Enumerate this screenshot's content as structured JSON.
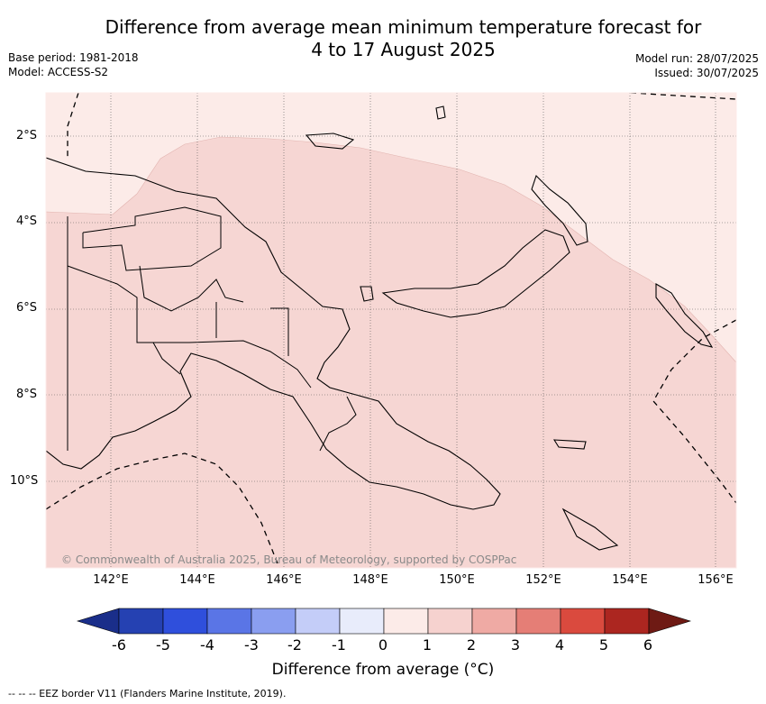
{
  "title_line1": "Difference from average mean minimum temperature forecast for",
  "title_line2": "4 to 17 August 2025",
  "base_period": "Base period: 1981-2018",
  "model": "Model: ACCESS-S2",
  "model_run": "Model run: 28/07/2025",
  "issued": "Issued: 30/07/2025",
  "lat_labels": [
    "2°S",
    "4°S",
    "6°S",
    "8°S",
    "10°S"
  ],
  "lon_labels": [
    "142°E",
    "144°E",
    "146°E",
    "148°E",
    "150°E",
    "152°E",
    "154°E",
    "156°E"
  ],
  "copyright": "© Commonwealth of Australia 2025, Bureau of Meteorology, supported by COSPPac",
  "colorbar": {
    "label": "Difference from average (°C)",
    "ticks": [
      "-6",
      "-5",
      "-4",
      "-3",
      "-2",
      "-1",
      "0",
      "1",
      "2",
      "3",
      "4",
      "5",
      "6"
    ],
    "colors": [
      "#1a2e8a",
      "#2541b2",
      "#2f4fdc",
      "#5a75e6",
      "#8a9ef0",
      "#c4cdf8",
      "#e8ecfb",
      "#fcebe8",
      "#f6d2cf",
      "#efaaa4",
      "#e57e76",
      "#da4a3e",
      "#ac2620",
      "#6e1a14"
    ]
  },
  "legend_eez": "--  --  -- EEZ border V11 (Flanders Marine Institute, 2019)."
}
